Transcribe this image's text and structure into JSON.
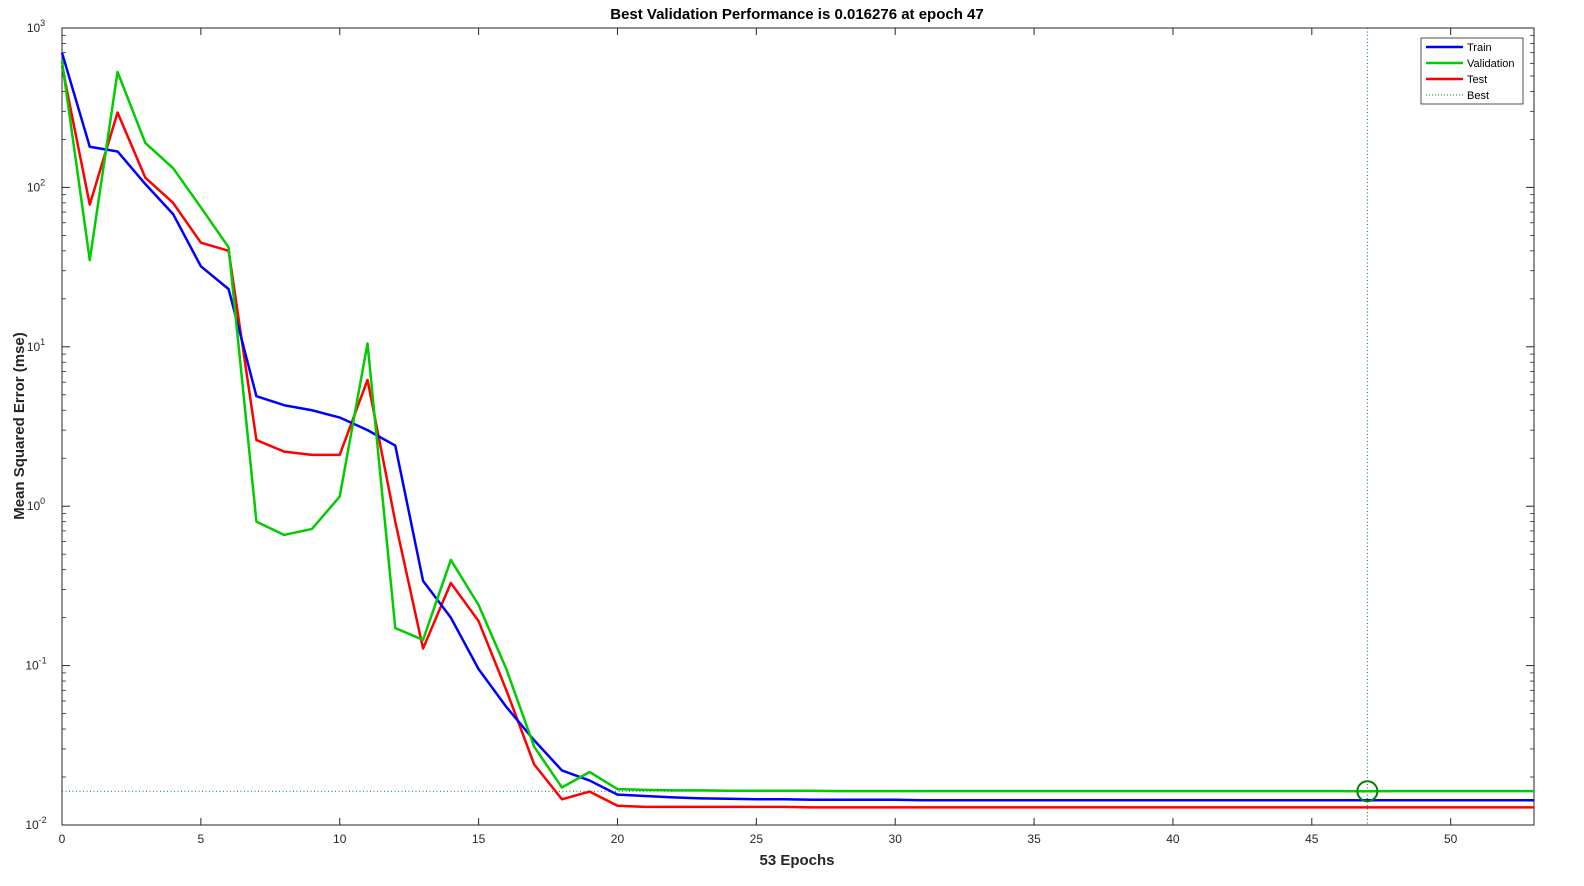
{
  "chart_data": {
    "type": "line",
    "title": "Best Validation Performance is 0.016276 at epoch 47",
    "xlabel": "53 Epochs",
    "ylabel": "Mean Squared Error  (mse)",
    "x_scale": "linear",
    "y_scale": "log",
    "xlim": [
      0,
      53
    ],
    "ylim": [
      0.01,
      1000
    ],
    "grid": false,
    "legend_position": "top-right",
    "x_ticks": [
      0,
      5,
      10,
      15,
      20,
      25,
      30,
      35,
      40,
      45,
      50
    ],
    "y_ticks": [
      {
        "value": 0.01,
        "base": "10",
        "exp": "-2"
      },
      {
        "value": 0.1,
        "base": "10",
        "exp": "-1"
      },
      {
        "value": 1,
        "base": "10",
        "exp": "0"
      },
      {
        "value": 10,
        "base": "10",
        "exp": "1"
      },
      {
        "value": 100,
        "base": "10",
        "exp": "2"
      },
      {
        "value": 1000,
        "base": "10",
        "exp": "3"
      }
    ],
    "x": [
      0,
      1,
      2,
      3,
      4,
      5,
      6,
      7,
      8,
      9,
      10,
      11,
      12,
      13,
      14,
      15,
      16,
      17,
      18,
      19,
      20,
      21,
      22,
      23,
      24,
      25,
      26,
      27,
      28,
      29,
      30,
      31,
      32,
      33,
      34,
      35,
      36,
      37,
      38,
      39,
      40,
      41,
      42,
      43,
      44,
      45,
      46,
      47,
      48,
      49,
      50,
      51,
      52,
      53
    ],
    "series": [
      {
        "name": "Train",
        "color": "#0000ff",
        "values": [
          700,
          180,
          168,
          105,
          68,
          32,
          23,
          4.9,
          4.3,
          4.0,
          3.6,
          3.0,
          2.4,
          0.34,
          0.2,
          0.095,
          0.055,
          0.034,
          0.022,
          0.019,
          0.0155,
          0.0152,
          0.0149,
          0.0147,
          0.0146,
          0.0145,
          0.0145,
          0.0144,
          0.0144,
          0.0144,
          0.0144,
          0.0143,
          0.0143,
          0.0143,
          0.0143,
          0.0143,
          0.0143,
          0.0143,
          0.0143,
          0.0143,
          0.0143,
          0.0143,
          0.0143,
          0.0143,
          0.0143,
          0.0143,
          0.0143,
          0.0143,
          0.0143,
          0.0143,
          0.0143,
          0.0143,
          0.0143,
          0.0143
        ]
      },
      {
        "name": "Validation",
        "color": "#00cc00",
        "values": [
          620,
          35,
          530,
          190,
          132,
          75,
          42,
          0.8,
          0.66,
          0.72,
          1.15,
          10.5,
          0.172,
          0.145,
          0.46,
          0.24,
          0.095,
          0.031,
          0.0172,
          0.0215,
          0.0168,
          0.0166,
          0.0165,
          0.0165,
          0.0164,
          0.0164,
          0.0164,
          0.0164,
          0.0163,
          0.0163,
          0.0163,
          0.0163,
          0.0163,
          0.0163,
          0.0163,
          0.0163,
          0.0163,
          0.0163,
          0.0163,
          0.0163,
          0.0163,
          0.0163,
          0.0163,
          0.0163,
          0.0163,
          0.0163,
          0.0163,
          0.016276,
          0.0163,
          0.0163,
          0.0163,
          0.0163,
          0.0163,
          0.0163
        ]
      },
      {
        "name": "Test",
        "color": "#ff0000",
        "values": [
          580,
          78,
          295,
          115,
          80,
          45,
          40,
          2.6,
          2.2,
          2.1,
          2.1,
          6.2,
          0.8,
          0.128,
          0.33,
          0.19,
          0.07,
          0.024,
          0.0145,
          0.0162,
          0.0132,
          0.013,
          0.013,
          0.013,
          0.013,
          0.013,
          0.013,
          0.0129,
          0.0129,
          0.0129,
          0.0129,
          0.0129,
          0.0129,
          0.0129,
          0.0129,
          0.0129,
          0.0129,
          0.0129,
          0.0129,
          0.0129,
          0.0129,
          0.0129,
          0.0129,
          0.0129,
          0.0129,
          0.0129,
          0.0129,
          0.0129,
          0.0129,
          0.0129,
          0.0129,
          0.0129,
          0.0129,
          0.0129
        ]
      }
    ],
    "best": {
      "name": "Best",
      "epoch": 47,
      "value": 0.016276,
      "color": "#008000"
    }
  }
}
